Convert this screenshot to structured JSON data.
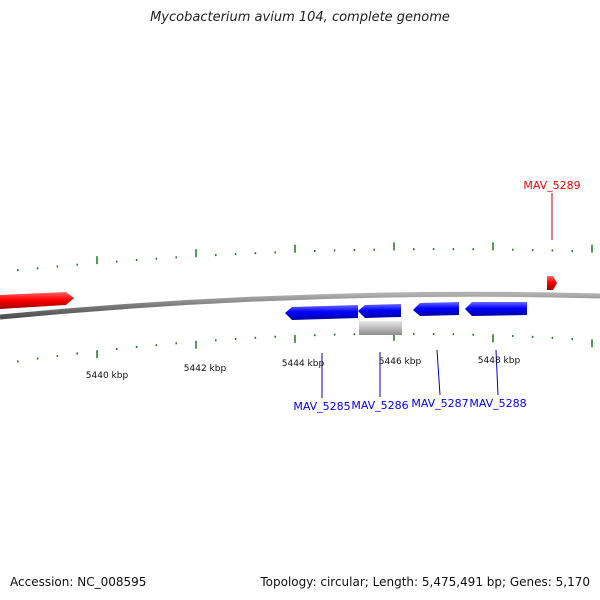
{
  "header": {
    "title": "Mycobacterium avium 104, complete genome"
  },
  "footer": {
    "accession": "Accession: NC_008595",
    "summary": "Topology: circular; Length: 5,475,491 bp; Genes: 5,170"
  },
  "map": {
    "backbone_color": "#808080",
    "tick_color": "#1a7a1a",
    "scale_labels": [
      "5440 kbp",
      "5442 kbp",
      "5444 kbp",
      "5446 kbp",
      "5448 kbp"
    ],
    "genes": [
      {
        "label": "",
        "strand": "forward",
        "color": "#ff0000"
      },
      {
        "label": "MAV_5285",
        "strand": "reverse",
        "color": "#0000ff"
      },
      {
        "label": "MAV_5286",
        "strand": "reverse",
        "color": "#0000ff"
      },
      {
        "label": "",
        "strand": "other",
        "color": "#b3b3b3"
      },
      {
        "label": "MAV_5287",
        "strand": "reverse",
        "color": "#0000ff"
      },
      {
        "label": "MAV_5288",
        "strand": "reverse",
        "color": "#0000ff"
      },
      {
        "label": "MAV_5289",
        "strand": "forward",
        "color": "#ff0000"
      }
    ]
  }
}
